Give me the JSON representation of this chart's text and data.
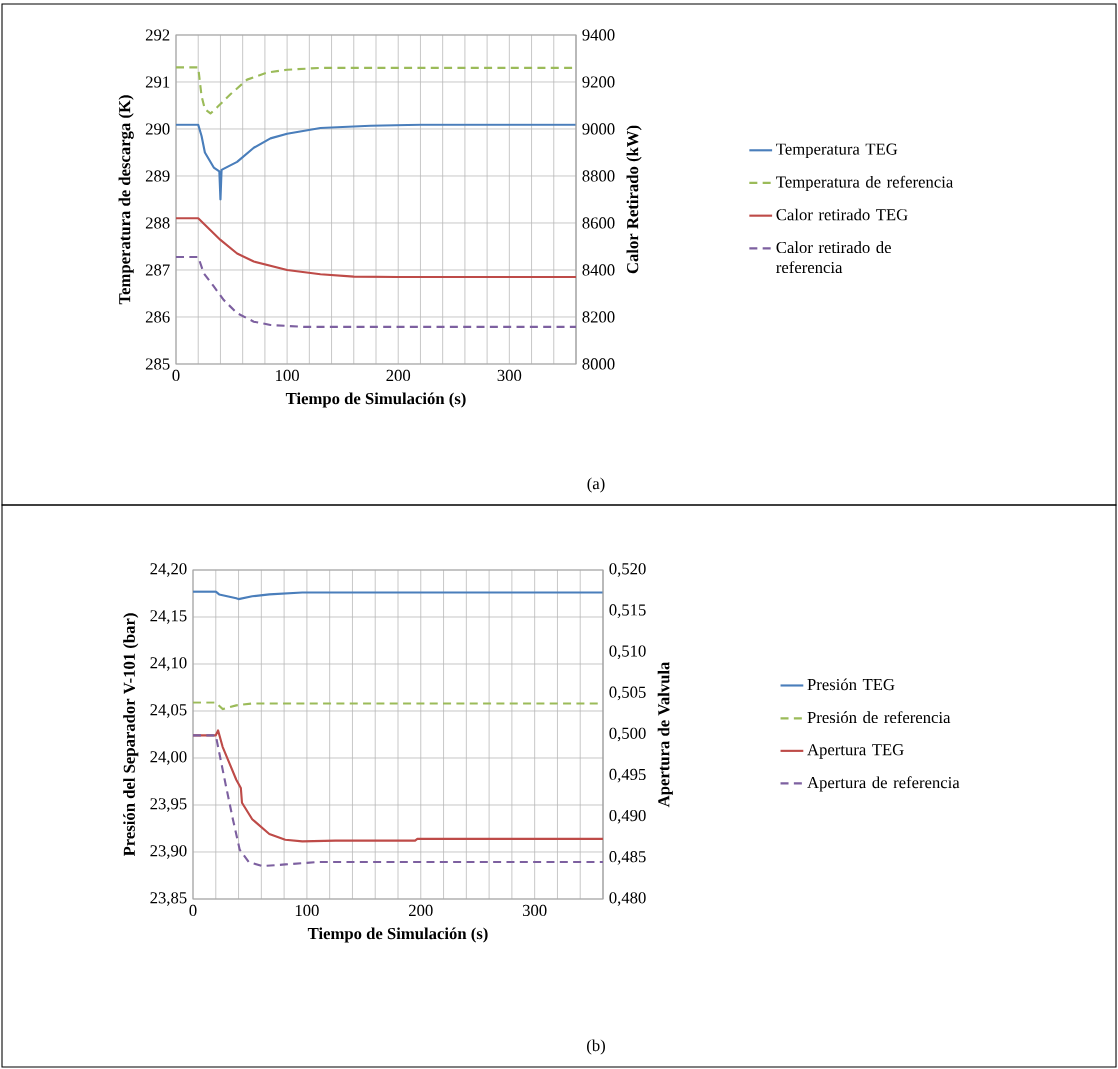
{
  "chart_data": [
    {
      "type": "line",
      "xlabel": "Tiempo de Simulación (s)",
      "ylabel": "Temperatura de descarga (K)",
      "y2label": "Calor Retirado (kW)",
      "annotations": [
        "(a)"
      ],
      "xlim": [
        0,
        360
      ],
      "xticks": [
        0,
        {
          "value": 20,
          "label": null
        },
        {
          "value": 40,
          "label": null
        },
        {
          "value": 60,
          "label": null
        },
        {
          "value": 80,
          "label": null
        },
        100,
        {
          "value": 120,
          "label": null
        },
        {
          "value": 140,
          "label": null
        },
        {
          "value": 160,
          "label": null
        },
        {
          "value": 180,
          "label": null
        },
        200,
        {
          "value": 220,
          "label": null
        },
        {
          "value": 240,
          "label": null
        },
        {
          "value": 260,
          "label": null
        },
        {
          "value": 280,
          "label": null
        },
        300,
        {
          "value": 320,
          "label": null
        },
        {
          "value": 340,
          "label": null
        }
      ],
      "ylim": [
        285,
        292
      ],
      "yticks": [
        285,
        286,
        287,
        288,
        289,
        290,
        291,
        292
      ],
      "y2lim": [
        8000,
        9400
      ],
      "y2ticks": [
        8000,
        8200,
        8400,
        8600,
        8800,
        9000,
        9200,
        9400
      ],
      "grid": true,
      "legend": "right",
      "series": [
        {
          "name": "Temperatura TEG",
          "color": "#4a7ebb",
          "line_style": "solid",
          "x": [
            0,
            20,
            23,
            26,
            34,
            39,
            40,
            41,
            55,
            70,
            85,
            100,
            130,
            175,
            220,
            360
          ],
          "values": [
            290.09,
            290.09,
            289.85,
            289.5,
            289.18,
            289.1,
            288.5,
            289.13,
            289.3,
            289.6,
            289.8,
            289.9,
            290.02,
            290.07,
            290.09,
            290.09
          ]
        },
        {
          "name": "Temperatura de referencia",
          "color": "#9bbb59",
          "line_style": "dashed",
          "x": [
            0,
            20,
            23,
            26,
            31,
            37,
            49,
            64,
            82,
            100,
            130,
            360
          ],
          "values": [
            291.31,
            291.31,
            290.7,
            290.42,
            290.33,
            290.46,
            290.74,
            291.05,
            291.2,
            291.26,
            291.3,
            291.3
          ]
        },
        {
          "name": "Calor retirado TEG",
          "color": "#be4b48",
          "line_style": "solid",
          "axis": "y2",
          "x": [
            0,
            20,
            40,
            55,
            70,
            100,
            130,
            160,
            200,
            360
          ],
          "values": [
            8620,
            8620,
            8528,
            8470,
            8436,
            8400,
            8382,
            8372,
            8370,
            8370
          ]
        },
        {
          "name": "Calor retirado de referencia",
          "color": "#7d60a0",
          "line_style": "dashed",
          "axis": "y2",
          "x": [
            0,
            20,
            25,
            34,
            43,
            55,
            70,
            85,
            115,
            360
          ],
          "values": [
            8455,
            8455,
            8386,
            8330,
            8272,
            8216,
            8180,
            8166,
            8158,
            8158
          ]
        }
      ]
    },
    {
      "type": "line",
      "xlabel": "Tiempo de Simulación (s)",
      "ylabel": "Presión del Separador V-101 (bar)",
      "y2label": "Apertura de Valvula",
      "annotations": [
        "(b)"
      ],
      "xlim": [
        0,
        360
      ],
      "xticks": [
        0,
        {
          "value": 20,
          "label": null
        },
        {
          "value": 40,
          "label": null
        },
        {
          "value": 60,
          "label": null
        },
        {
          "value": 80,
          "label": null
        },
        100,
        {
          "value": 120,
          "label": null
        },
        {
          "value": 140,
          "label": null
        },
        {
          "value": 160,
          "label": null
        },
        {
          "value": 180,
          "label": null
        },
        200,
        {
          "value": 220,
          "label": null
        },
        {
          "value": 240,
          "label": null
        },
        {
          "value": 260,
          "label": null
        },
        {
          "value": 280,
          "label": null
        },
        300,
        {
          "value": 320,
          "label": null
        },
        {
          "value": 340,
          "label": null
        }
      ],
      "ylim": [
        23.85,
        24.2
      ],
      "yticks": [
        {
          "value": 23.85,
          "label": "23,85"
        },
        {
          "value": 23.9,
          "label": "23,90"
        },
        {
          "value": 23.95,
          "label": "23,95"
        },
        {
          "value": 24.0,
          "label": "24,00"
        },
        {
          "value": 24.05,
          "label": "24,05"
        },
        {
          "value": 24.1,
          "label": "24,10"
        },
        {
          "value": 24.15,
          "label": "24,15"
        },
        {
          "value": 24.2,
          "label": "24,20"
        }
      ],
      "y2lim": [
        0.48,
        0.52
      ],
      "y2ticks": [
        {
          "value": 0.48,
          "label": "0,480"
        },
        {
          "value": 0.485,
          "label": "0,485"
        },
        {
          "value": 0.49,
          "label": "0,490"
        },
        {
          "value": 0.495,
          "label": "0,495"
        },
        {
          "value": 0.5,
          "label": "0,500"
        },
        {
          "value": 0.505,
          "label": "0,505"
        },
        {
          "value": 0.51,
          "label": "0,510"
        },
        {
          "value": 0.515,
          "label": "0,515"
        },
        {
          "value": 0.52,
          "label": "0,520"
        }
      ],
      "grid": true,
      "legend": "right",
      "series": [
        {
          "name": "Presión TEG",
          "color": "#4a7ebb",
          "line_style": "solid",
          "x": [
            0,
            20,
            23,
            38,
            40,
            52,
            67,
            96,
            360
          ],
          "values": [
            24.177,
            24.177,
            24.174,
            24.17,
            24.169,
            24.172,
            24.174,
            24.176,
            24.176
          ]
        },
        {
          "name": "Presión de referencia",
          "color": "#9bbb59",
          "line_style": "dashed",
          "x": [
            0,
            20,
            26,
            38,
            52,
            360
          ],
          "values": [
            24.059,
            24.059,
            24.052,
            24.056,
            24.058,
            24.058
          ]
        },
        {
          "name": "Apertura TEG",
          "color": "#be4b48",
          "line_style": "solid",
          "axis": "y2",
          "x": [
            0,
            20,
            22,
            26,
            38,
            42,
            43,
            52,
            67,
            81,
            96,
            125,
            195,
            197,
            360
          ],
          "values": [
            0.4999,
            0.4999,
            0.5005,
            0.4985,
            0.4945,
            0.4935,
            0.4917,
            0.4897,
            0.4879,
            0.4872,
            0.487,
            0.4871,
            0.4871,
            0.4873,
            0.4873
          ]
        },
        {
          "name": "Apertura de referencia",
          "color": "#7d60a0",
          "line_style": "dashed",
          "axis": "y2",
          "x": [
            0,
            20,
            23,
            29,
            35,
            41,
            49,
            61,
            81,
            110,
            360
          ],
          "values": [
            0.4999,
            0.4999,
            0.4978,
            0.4937,
            0.4897,
            0.486,
            0.4845,
            0.484,
            0.4842,
            0.4845,
            0.4845
          ]
        }
      ]
    }
  ]
}
